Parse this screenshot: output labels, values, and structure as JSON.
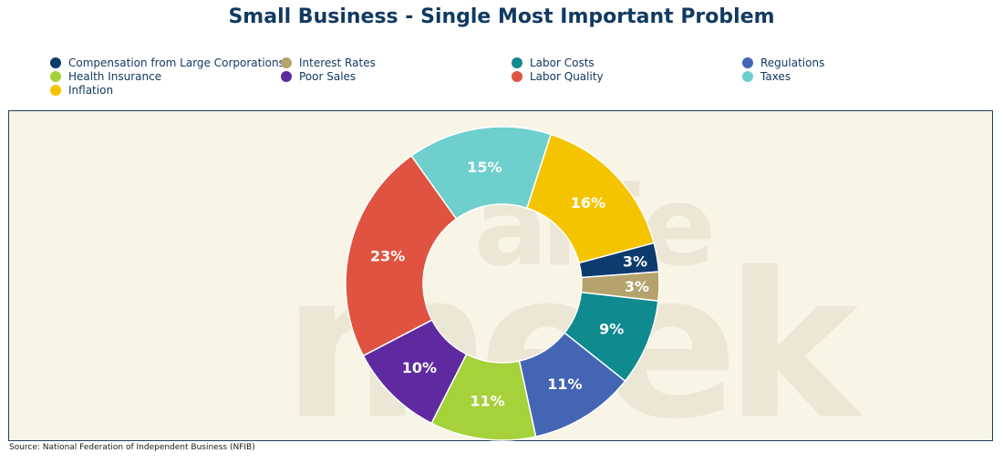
{
  "title": "Small Business - Single Most Important Problem",
  "source": "Source: National Federation of Independent Business (NFIB)",
  "watermark": [
    "alfie",
    "meek"
  ],
  "legend": [
    {
      "label": "Compensation from Large Corporations",
      "color": "#0d3b6e"
    },
    {
      "label": "Interest Rates",
      "color": "#b5a26c"
    },
    {
      "label": "Labor Costs",
      "color": "#0f8a8e"
    },
    {
      "label": "Regulations",
      "color": "#4465b3"
    },
    {
      "label": "Health Insurance",
      "color": "#a5d13a"
    },
    {
      "label": "Poor Sales",
      "color": "#5f2aa0"
    },
    {
      "label": "Labor Quality",
      "color": "#e05340"
    },
    {
      "label": "Taxes",
      "color": "#6ecfcd"
    },
    {
      "label": "Inflation",
      "color": "#f5c400"
    }
  ],
  "chart_data": {
    "type": "pie",
    "donut": true,
    "slices": [
      {
        "name": "Inflation",
        "value": 16,
        "label": "16%",
        "color": "#f5c400"
      },
      {
        "name": "Compensation from Large Corporations",
        "value": 3,
        "label": "3%",
        "color": "#0d3b6e"
      },
      {
        "name": "Interest Rates",
        "value": 3,
        "label": "3%",
        "color": "#b5a26c"
      },
      {
        "name": "Labor Costs",
        "value": 9,
        "label": "9%",
        "color": "#0f8a8e"
      },
      {
        "name": "Regulations",
        "value": 11,
        "label": "11%",
        "color": "#4465b3"
      },
      {
        "name": "Health Insurance",
        "value": 11,
        "label": "11%",
        "color": "#a5d13a"
      },
      {
        "name": "Poor Sales",
        "value": 10,
        "label": "10%",
        "color": "#5f2aa0"
      },
      {
        "name": "Labor Quality",
        "value": 23,
        "label": "23%",
        "color": "#e05340"
      },
      {
        "name": "Taxes",
        "value": 15,
        "label": "15%",
        "color": "#6ecfcd"
      }
    ]
  }
}
